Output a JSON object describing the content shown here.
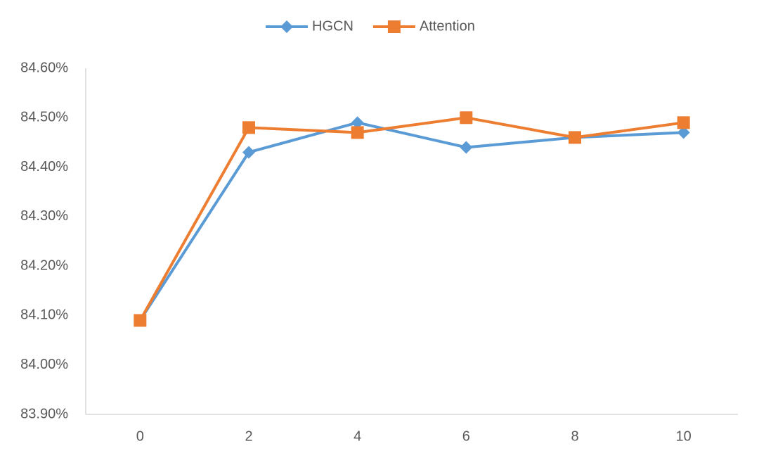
{
  "chart_data": {
    "type": "line",
    "categories": [
      "0",
      "2",
      "4",
      "6",
      "8",
      "10"
    ],
    "series": [
      {
        "name": "HGCN",
        "color": "#5b9bd5",
        "marker": "diamond",
        "values": [
          84.09,
          84.43,
          84.49,
          84.44,
          84.46,
          84.47
        ]
      },
      {
        "name": "Attention",
        "color": "#ed7d31",
        "marker": "square",
        "values": [
          84.09,
          84.48,
          84.47,
          84.5,
          84.46,
          84.49
        ]
      }
    ],
    "ylim": [
      83.9,
      84.6
    ],
    "yticks": [
      {
        "value": 83.9,
        "label": "83.90%"
      },
      {
        "value": 84.0,
        "label": "84.00%"
      },
      {
        "value": 84.1,
        "label": "84.10%"
      },
      {
        "value": 84.2,
        "label": "84.20%"
      },
      {
        "value": 84.3,
        "label": "84.30%"
      },
      {
        "value": 84.4,
        "label": "84.40%"
      },
      {
        "value": 84.5,
        "label": "84.50%"
      },
      {
        "value": 84.6,
        "label": "84.60%"
      }
    ],
    "grid": false,
    "legend": "top"
  }
}
